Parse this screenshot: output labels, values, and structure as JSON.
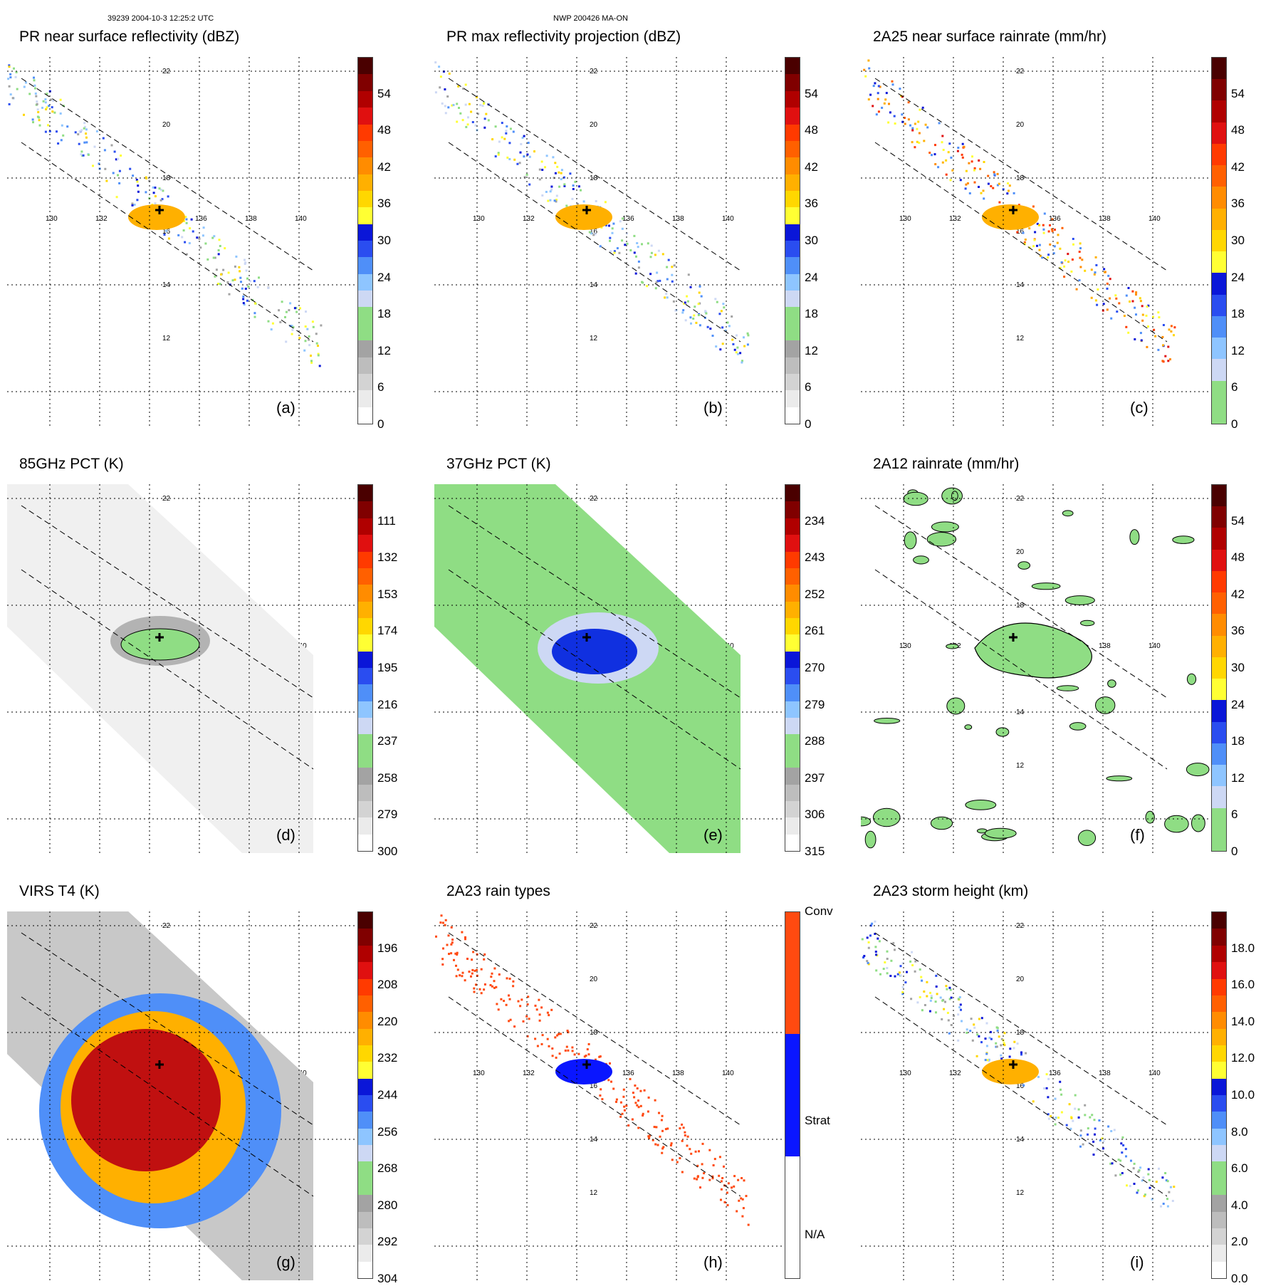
{
  "header": {
    "left": "39239 2004-10-3 12:25:2 UTC",
    "center": "NWP 200426 MA-ON"
  },
  "axis_labels": {
    "lon": [
      "130",
      "132",
      "134",
      "136",
      "138",
      "140"
    ],
    "lat": [
      "22",
      "20",
      "18",
      "16",
      "14",
      "12"
    ]
  },
  "panels": [
    {
      "title": "PR near surface reflectivity (dBZ)",
      "label": "(a)",
      "ticks": [
        "0",
        "6",
        "12",
        "18",
        "24",
        "30",
        "36",
        "42",
        "48",
        "54"
      ],
      "palette": "reflectivity"
    },
    {
      "title": "PR max reflectivity projection (dBZ)",
      "label": "(b)",
      "ticks": [
        "0",
        "6",
        "12",
        "18",
        "24",
        "30",
        "36",
        "42",
        "48",
        "54"
      ],
      "palette": "reflectivity"
    },
    {
      "title": "2A25 near surface rainrate (mm/hr)",
      "label": "(c)",
      "ticks": [
        "0",
        "6",
        "12",
        "18",
        "24",
        "30",
        "36",
        "42",
        "48",
        "54"
      ],
      "palette": "rainrate"
    },
    {
      "title": "85GHz PCT (K)",
      "label": "(d)",
      "ticks": [
        "300",
        "279",
        "258",
        "237",
        "216",
        "195",
        "174",
        "153",
        "132",
        "111"
      ],
      "palette": "temperature"
    },
    {
      "title": "37GHz PCT (K)",
      "label": "(e)",
      "ticks": [
        "315",
        "306",
        "297",
        "288",
        "279",
        "270",
        "261",
        "252",
        "243",
        "234"
      ],
      "palette": "temperature"
    },
    {
      "title": "2A12 rainrate (mm/hr)",
      "label": "(f)",
      "ticks": [
        "0",
        "6",
        "12",
        "18",
        "24",
        "30",
        "36",
        "42",
        "48",
        "54"
      ],
      "palette": "rainrate"
    },
    {
      "title": "VIRS T4 (K)",
      "label": "(g)",
      "ticks": [
        "304",
        "292",
        "280",
        "268",
        "256",
        "244",
        "232",
        "220",
        "208",
        "196"
      ],
      "palette": "temperature"
    },
    {
      "title": "2A23 rain types",
      "label": "(h)",
      "ticks": [
        "N/A",
        "Strat",
        "Conv"
      ],
      "palette": "raintype"
    },
    {
      "title": "2A23 storm height (km)",
      "label": "(i)",
      "ticks": [
        "0.0",
        "2.0",
        "4.0",
        "6.0",
        "8.0",
        "10.0",
        "12.0",
        "14.0",
        "16.0",
        "18.0"
      ],
      "palette": "height"
    }
  ],
  "colors": {
    "reflectivity": [
      "#ffffff",
      "#ebebeb",
      "#d3d3d3",
      "#bdbdbd",
      "#a3a3a3",
      "#8fdd84",
      "#8fdd84",
      "#cdd8f4",
      "#8ec5ff",
      "#4f8ff8",
      "#2a4df0",
      "#0a16d8",
      "#ffff33",
      "#ffd700",
      "#ffb000",
      "#ff8c00",
      "#ff6000",
      "#ff3a00",
      "#e01010",
      "#b00000",
      "#800000",
      "#4a0000"
    ],
    "rainrate": [
      "#8fdd84",
      "#8fdd84",
      "#cdd8f4",
      "#8ec5ff",
      "#4f8ff8",
      "#2a4df0",
      "#0a16d8",
      "#ffff33",
      "#ffd700",
      "#ffb000",
      "#ff8c00",
      "#ff6000",
      "#ff3a00",
      "#e01010",
      "#b00000",
      "#800000",
      "#4a0000"
    ],
    "temperature": [
      "#ffffff",
      "#ebebeb",
      "#d3d3d3",
      "#bdbdbd",
      "#a3a3a3",
      "#8fdd84",
      "#8fdd84",
      "#cdd8f4",
      "#8ec5ff",
      "#4f8ff8",
      "#2a4df0",
      "#0a16d8",
      "#ffff33",
      "#ffd700",
      "#ffb000",
      "#ff8c00",
      "#ff6000",
      "#ff3a00",
      "#e01010",
      "#b00000",
      "#800000",
      "#4a0000"
    ],
    "raintype": [
      "#ffffff",
      "#0a16ff",
      "#ff4a10"
    ],
    "height": [
      "#ffffff",
      "#ebebeb",
      "#d3d3d3",
      "#bdbdbd",
      "#a3a3a3",
      "#8fdd84",
      "#8fdd84",
      "#cdd8f4",
      "#8ec5ff",
      "#4f8ff8",
      "#2a4df0",
      "#0a16d8",
      "#ffff33",
      "#ffd700",
      "#ffb000",
      "#ff8c00",
      "#ff6000",
      "#ff3a00",
      "#e01010",
      "#b00000",
      "#800000",
      "#4a0000"
    ]
  }
}
